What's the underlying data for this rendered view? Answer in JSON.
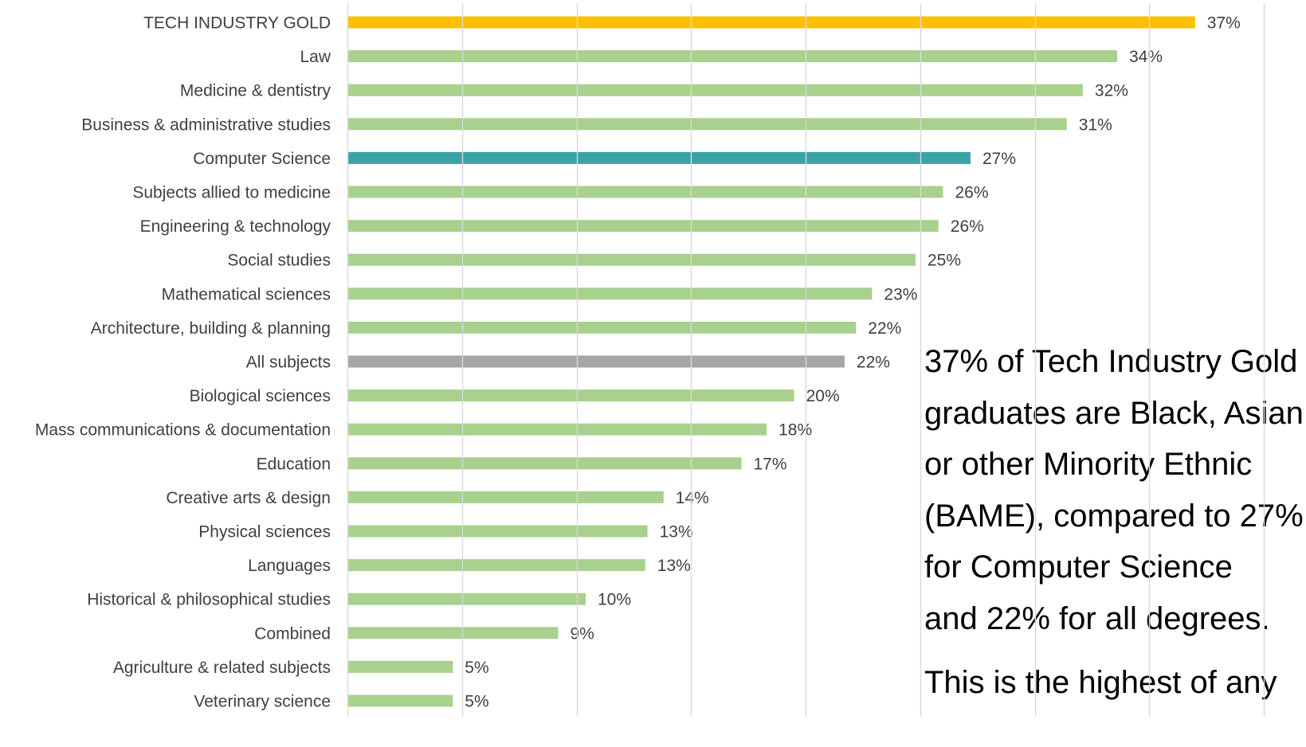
{
  "chart_data": {
    "type": "bar",
    "orientation": "horizontal",
    "categories": [
      "TECH INDUSTRY GOLD",
      "Law",
      "Medicine & dentistry",
      "Business & administrative studies",
      "Computer Science",
      "Subjects allied to medicine",
      "Engineering & technology",
      "Social studies",
      "Mathematical sciences",
      "Architecture, building & planning",
      "All subjects",
      "Biological sciences",
      "Mass communications & documentation",
      "Education",
      "Creative arts & design",
      "Physical sciences",
      "Languages",
      "Historical & philosophical studies",
      "Combined",
      "Agriculture & related subjects",
      "Veterinary science"
    ],
    "values": [
      37.0,
      33.6,
      32.1,
      31.4,
      27.2,
      26.0,
      25.8,
      24.8,
      22.9,
      22.2,
      21.7,
      19.5,
      18.3,
      17.2,
      13.8,
      13.1,
      13.0,
      10.4,
      9.2,
      4.6,
      4.6
    ],
    "value_labels": [
      "37%",
      "34%",
      "32%",
      "31%",
      "27%",
      "26%",
      "26%",
      "25%",
      "23%",
      "22%",
      "22%",
      "20%",
      "18%",
      "17%",
      "14%",
      "13%",
      "13%",
      "10%",
      "9%",
      "5%",
      "5%"
    ],
    "bar_colors": [
      "#ffc000",
      "#a9d18e",
      "#a9d18e",
      "#a9d18e",
      "#3ba3a7",
      "#a9d18e",
      "#a9d18e",
      "#a9d18e",
      "#a9d18e",
      "#a9d18e",
      "#a6a6a6",
      "#a9d18e",
      "#a9d18e",
      "#a9d18e",
      "#a9d18e",
      "#a9d18e",
      "#a9d18e",
      "#a9d18e",
      "#a9d18e",
      "#a9d18e",
      "#a9d18e"
    ],
    "xlim": [
      0,
      40
    ],
    "x_grid_step": 5,
    "grid": true,
    "legend": "none",
    "title": "",
    "xlabel": "",
    "ylabel": ""
  },
  "annotation": {
    "paragraph_1_lines": [
      "37% of Tech Industry Gold",
      "graduates are Black, Asian",
      "or other Minority Ethnic",
      "(BAME), compared to 27%",
      "for Computer Science",
      "and 22% for all degrees."
    ],
    "paragraph_2_lines": [
      "This is the highest of any"
    ]
  },
  "colors": {
    "gold": "#ffc000",
    "default_bar": "#a9d18e",
    "computer_science": "#3ba3a7",
    "all_subjects": "#a6a6a6",
    "gridline": "#d9d9d9",
    "label_text": "#404040"
  }
}
